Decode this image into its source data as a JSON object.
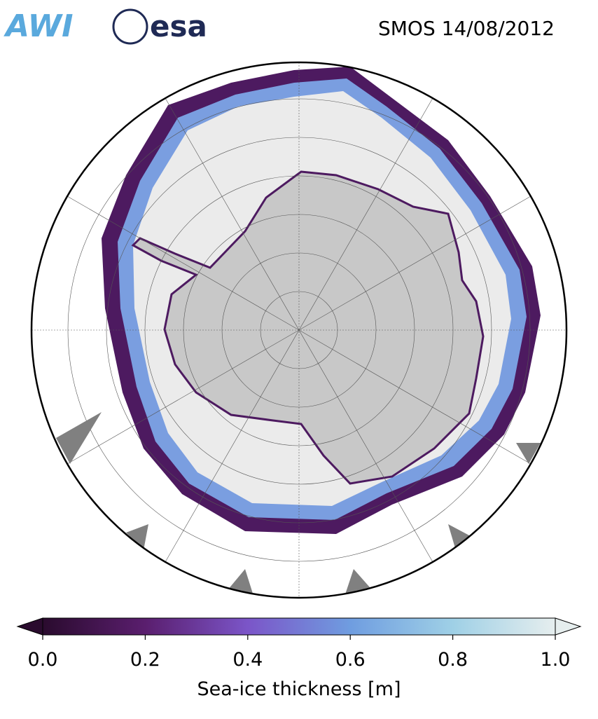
{
  "logos": [
    "AWI",
    "esa"
  ],
  "title": "SMOS 14/08/2012",
  "colorbar": {
    "label": "Sea-ice thickness [m]",
    "lim": [
      0,
      1
    ],
    "ticks": [
      {
        "value": 0,
        "label": "0.0"
      },
      {
        "value": 0.2,
        "label": "0.2"
      },
      {
        "value": 0.4,
        "label": "0.4"
      },
      {
        "value": 0.6,
        "label": "0.6"
      },
      {
        "value": 0.8,
        "label": "0.8"
      },
      {
        "value": 1,
        "label": "1.0"
      }
    ],
    "colors": [
      "#2a0b2e",
      "#5a1e6e",
      "#7b55c8",
      "#6f9de0",
      "#9fd0e6",
      "#e6eeee"
    ]
  }
}
